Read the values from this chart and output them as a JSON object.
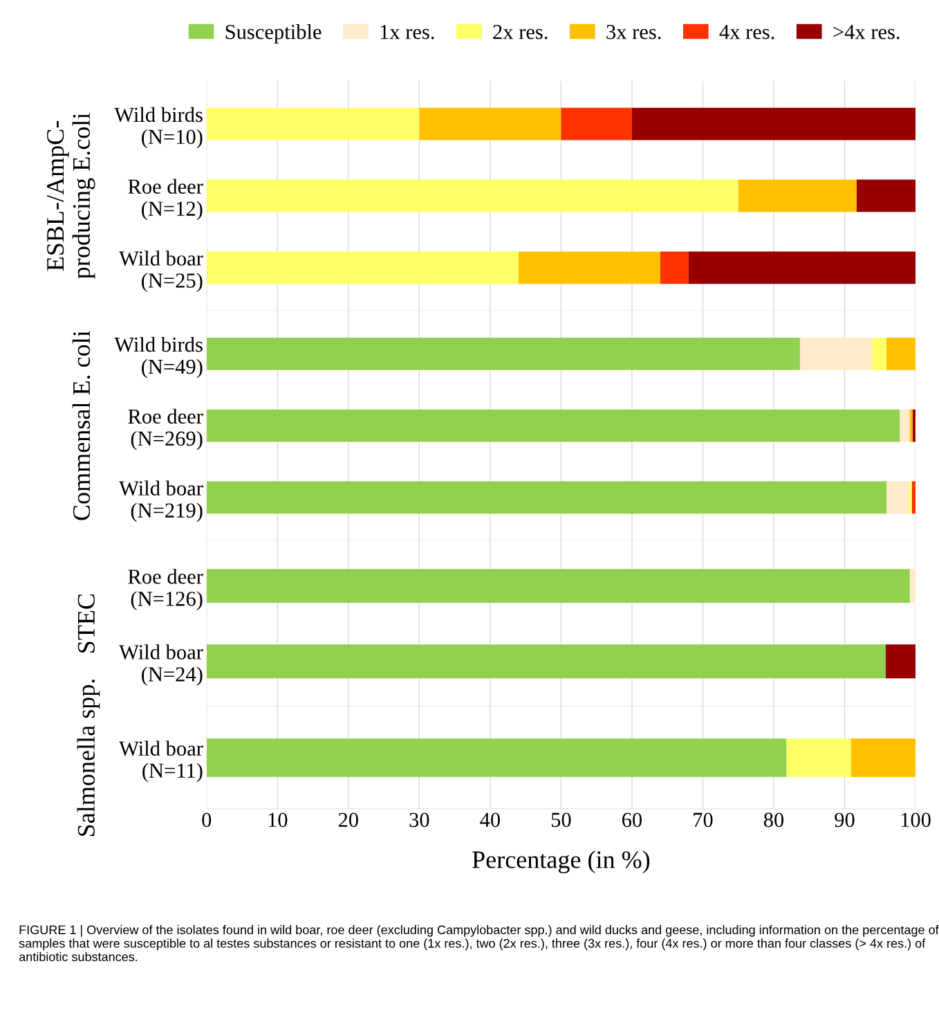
{
  "chart_data": [
    {
      "type": "bar",
      "orientation": "horizontal",
      "stacked": true,
      "ylabel": "ESBL-/AmpC-\nproducing E.coli",
      "categories": [
        "Wild birds\n(N=10)",
        "Roe deer\n(N=12)",
        "Wild boar\n(N=25)"
      ],
      "xlim": [
        0,
        100
      ],
      "xticks": [
        0,
        10,
        20,
        30,
        40,
        50,
        60,
        70,
        80,
        90,
        100
      ],
      "tick_labels": "y",
      "grid": "x",
      "legend": "top",
      "series": [
        {
          "name": "Susceptible",
          "color": "#92d050",
          "values": [
            0,
            0,
            0
          ]
        },
        {
          "name": "1x res.",
          "color": "#fdebc9",
          "values": [
            0,
            0,
            0
          ]
        },
        {
          "name": "2x res.",
          "color": "#ffff66",
          "values": [
            30,
            75,
            44
          ]
        },
        {
          "name": "3x res.",
          "color": "#ffc000",
          "values": [
            20,
            16.7,
            20
          ]
        },
        {
          "name": "4x res.",
          "color": "#ff3300",
          "values": [
            10,
            0,
            4
          ]
        },
        {
          "name": ">4x res.",
          "color": "#990000",
          "values": [
            40,
            8.3,
            32
          ]
        }
      ]
    },
    {
      "type": "bar",
      "orientation": "horizontal",
      "stacked": true,
      "ylabel": "Commensal E. coli",
      "categories": [
        "Wild birds\n(N=49)",
        "Roe deer\n(N=269)",
        "Wild boar\n(N=219)"
      ],
      "xlim": [
        0,
        100
      ],
      "xticks": [
        0,
        10,
        20,
        30,
        40,
        50,
        60,
        70,
        80,
        90,
        100
      ],
      "tick_labels": "y",
      "grid": "x",
      "series": [
        {
          "color": "#92d050",
          "values": [
            83.7,
            97.8,
            95.9
          ]
        },
        {
          "color": "#fdebc9",
          "values": [
            10.2,
            1.4,
            3.2
          ]
        },
        {
          "color": "#ffff66",
          "values": [
            2.0,
            0,
            0.4
          ]
        },
        {
          "color": "#ffc000",
          "values": [
            4.1,
            0.4,
            0
          ]
        },
        {
          "color": "#ff3300",
          "values": [
            0,
            0,
            0.5
          ]
        },
        {
          "color": "#990000",
          "values": [
            0,
            0.4,
            0
          ]
        }
      ]
    },
    {
      "type": "bar",
      "orientation": "horizontal",
      "stacked": true,
      "ylabel": "STEC",
      "categories": [
        "Roe deer\n(N=126)",
        "Wild boar\n(N=24)"
      ],
      "xlim": [
        0,
        100
      ],
      "xticks": [
        0,
        10,
        20,
        30,
        40,
        50,
        60,
        70,
        80,
        90,
        100
      ],
      "tick_labels": "y",
      "grid": "x",
      "series": [
        {
          "color": "#92d050",
          "values": [
            99.2,
            95.8
          ]
        },
        {
          "color": "#fdebc9",
          "values": [
            0.8,
            0
          ]
        },
        {
          "color": "#990000",
          "values": [
            0,
            4.2
          ]
        }
      ]
    },
    {
      "type": "bar",
      "orientation": "horizontal",
      "stacked": true,
      "ylabel": "Salmonella spp.",
      "xlabel": "Percentage (in %)",
      "categories": [
        "Wild boar\n(N=11)"
      ],
      "xlim": [
        0,
        100
      ],
      "xticks": [
        0,
        10,
        20,
        30,
        40,
        50,
        60,
        70,
        80,
        90,
        100
      ],
      "grid": "x",
      "annotations": [
        "FIGURE 1 | Overview of the isolates found in wild boar, roe deer (excluding Campylobacter spp.) and wild ducks and geese, including information on the percentage of samples that were susceptible to al testes substances or resistant to one (1x res.), two (2x res.), three (3x res.), four (4x res.) or more than four classes (> 4x res.) of antibiotic substances."
      ],
      "series": [
        {
          "color": "#92d050",
          "values": [
            81.8
          ]
        },
        {
          "color": "#ffff66",
          "values": [
            9.1
          ]
        },
        {
          "color": "#ffc000",
          "values": [
            9.1
          ]
        }
      ]
    }
  ]
}
